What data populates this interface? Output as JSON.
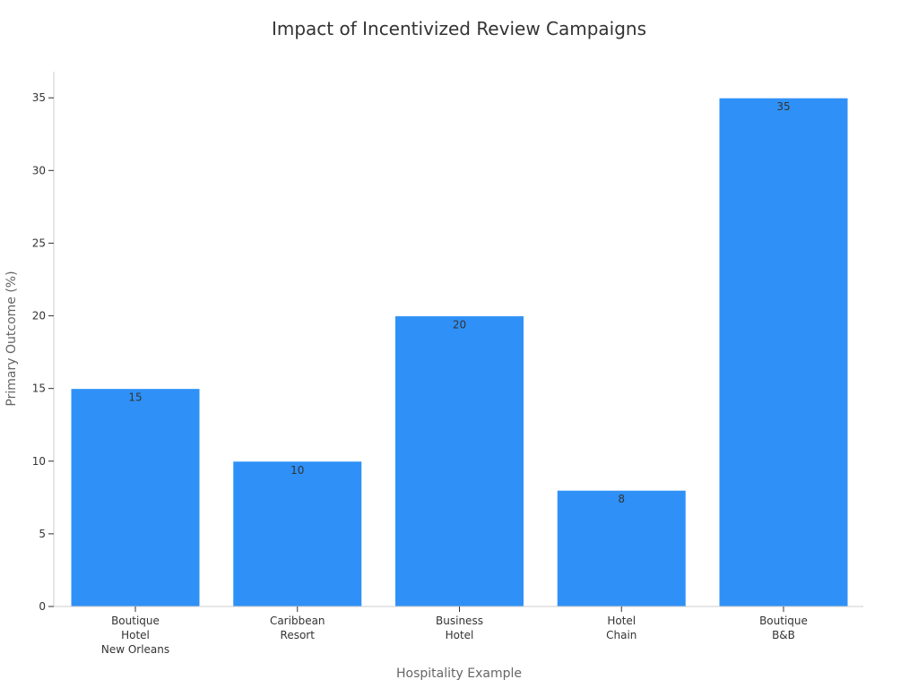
{
  "chart_data": {
    "type": "bar",
    "title": "Impact of Incentivized Review Campaigns",
    "xlabel": "Hospitality Example",
    "ylabel": "Primary Outcome (%)",
    "categories": [
      [
        "Boutique",
        "Hotel",
        "New Orleans"
      ],
      [
        "Caribbean",
        "Resort"
      ],
      [
        "Business",
        "Hotel"
      ],
      [
        "Hotel",
        "Chain"
      ],
      [
        "Boutique",
        "B&B"
      ]
    ],
    "values": [
      15,
      10,
      20,
      8,
      35
    ],
    "ylim": [
      0,
      36.8
    ],
    "yticks": [
      0,
      5,
      10,
      15,
      20,
      25,
      30,
      35
    ],
    "bar_color": "#2f91f7",
    "grid": false,
    "data_labels": true
  }
}
